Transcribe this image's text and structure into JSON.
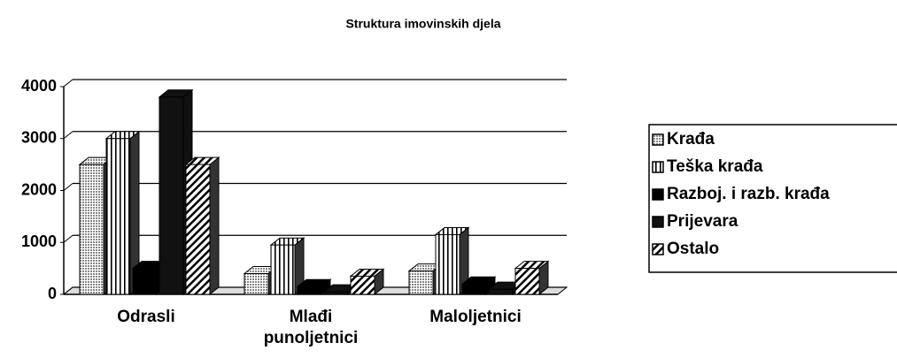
{
  "chart_data": {
    "type": "bar3d",
    "title": "Struktura imovinskih djela",
    "categories": [
      "Odrasli",
      "Mlađi punoljetnici",
      "Maloljetnici"
    ],
    "series": [
      {
        "name": "Krađa",
        "color": "#b0b0b0",
        "pattern": "dots",
        "values": [
          2500,
          400,
          450
        ]
      },
      {
        "name": "Teška krađa",
        "color": "#ffffff",
        "pattern": "vertical",
        "values": [
          3000,
          950,
          1150
        ]
      },
      {
        "name": "Razboj. i razb. krađa",
        "color": "#000000",
        "pattern": "solid",
        "values": [
          500,
          150,
          200
        ]
      },
      {
        "name": "Prijevara",
        "color": "#111111",
        "pattern": "solid",
        "values": [
          3800,
          50,
          100
        ]
      },
      {
        "name": "Ostalo",
        "color": "#ffffff",
        "pattern": "diagonal",
        "values": [
          2500,
          350,
          500
        ]
      }
    ],
    "ylim": [
      0,
      4000
    ],
    "yticks": [
      0,
      1000,
      2000,
      3000,
      4000
    ],
    "grid": true,
    "legend": "right"
  }
}
